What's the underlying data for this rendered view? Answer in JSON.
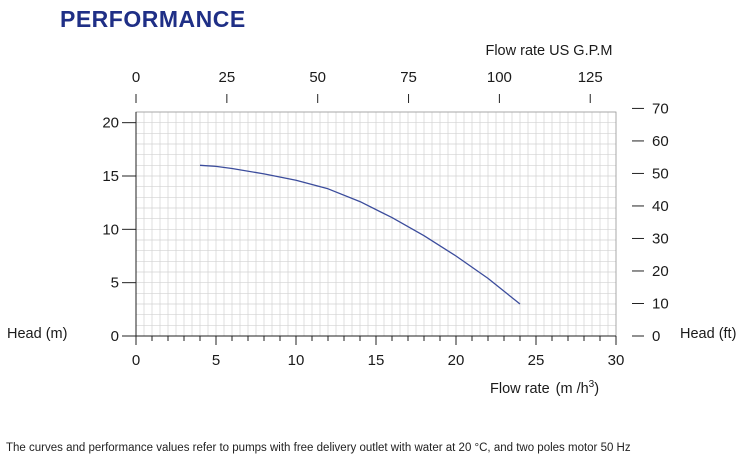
{
  "header": {
    "title": "PERFORMANCE"
  },
  "footnote": "The curves and performance values refer to pumps with free delivery outlet with water at 20 °C, and two poles motor 50 Hz",
  "colors": {
    "title": "#1f2f86",
    "curve": "#3b4c9c",
    "grid": "#d2d2d2",
    "axis": "#222222"
  },
  "chart_data": {
    "type": "line",
    "title": "PERFORMANCE",
    "x_bottom": {
      "label_main": "Flow rate",
      "label_unit": "(m /h",
      "label_sup": "3",
      "label_close": ")",
      "range": [
        0,
        30
      ],
      "ticks": [
        "0",
        "5",
        "10",
        "15",
        "20",
        "25",
        "30"
      ]
    },
    "x_top": {
      "label": "Flow rate US  G.P.M",
      "range": [
        0,
        132.09
      ],
      "ticks": [
        "0",
        "25",
        "50",
        "75",
        "100",
        "125"
      ]
    },
    "y_left": {
      "label": "Head (m)",
      "range": [
        0,
        21
      ],
      "ticks": [
        "0",
        "5",
        "10",
        "15",
        "20"
      ]
    },
    "y_right": {
      "label": "Head (ft)",
      "range": [
        0,
        68.9
      ],
      "ticks": [
        "0",
        "10",
        "20",
        "30",
        "40",
        "50",
        "60",
        "70"
      ]
    },
    "grid": true,
    "series": [
      {
        "x": [
          4,
          5,
          6,
          8,
          10,
          12,
          14,
          16,
          18,
          20,
          22,
          24
        ],
        "y": [
          16,
          15.9,
          15.7,
          15.2,
          14.6,
          13.8,
          12.6,
          11.1,
          9.4,
          7.5,
          5.4,
          3.0
        ]
      }
    ]
  }
}
